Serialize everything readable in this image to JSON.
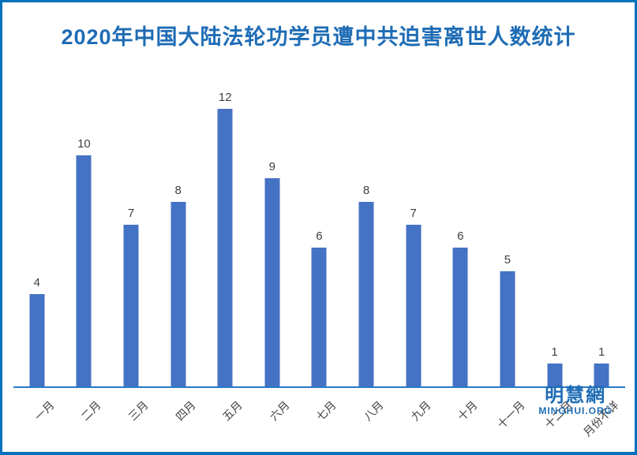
{
  "title": "2020年中国大陆法轮功学员遭中共迫害离世人数统计",
  "watermark": {
    "chinese": "明慧網",
    "url": "MINGHUI.ORG"
  },
  "colors": {
    "bar": "#4472C4",
    "frame_border": "#0071BC",
    "axis_line": "#2778C4",
    "title_text": "#1E6CB5",
    "label_text": "#404040",
    "background": "#FFFFFF"
  },
  "chart_data": {
    "type": "bar",
    "title": "2020年中国大陆法轮功学员遭中共迫害离世人数统计",
    "categories": [
      "一月",
      "二月",
      "三月",
      "四月",
      "五月",
      "六月",
      "七月",
      "八月",
      "九月",
      "十月",
      "十一月",
      "十二月",
      "月份不详"
    ],
    "values": [
      4,
      10,
      7,
      8,
      12,
      9,
      6,
      8,
      7,
      6,
      5,
      1,
      1
    ],
    "xlabel": "",
    "ylabel": "",
    "ylim": [
      0,
      13
    ],
    "grid": false,
    "legend": null,
    "data_labels": true,
    "x_tick_rotation": 45,
    "bar_color": "#4472C4"
  }
}
